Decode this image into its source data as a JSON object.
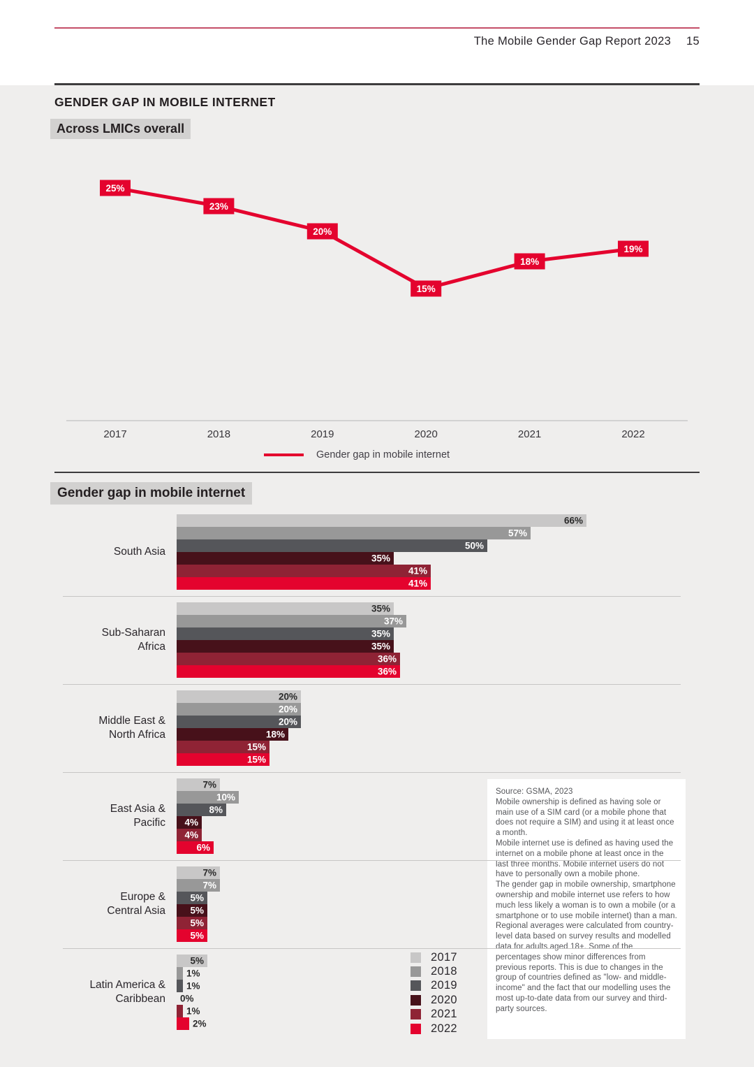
{
  "header": {
    "title": "The Mobile Gender Gap Report 2023",
    "page_number": "15"
  },
  "section": {
    "title": "GENDER GAP IN MOBILE INTERNET",
    "subtitle": "Across LMICs overall",
    "bar_title": "Gender gap in mobile internet"
  },
  "colors": {
    "accent_red": "#e4032e",
    "top_rule_red": "#c44e68",
    "panel_bg": "#efeeed",
    "chip_bg": "#d2d1d0",
    "year_colors": [
      "#c8c7c7",
      "#989898",
      "#55565a",
      "#47111a",
      "#8f2335",
      "#e4032e"
    ]
  },
  "chart_data": [
    {
      "type": "line",
      "title": "Across LMICs overall",
      "x": [
        "2017",
        "2018",
        "2019",
        "2020",
        "2021",
        "2022"
      ],
      "values": [
        25,
        23,
        20,
        15,
        18,
        19
      ],
      "point_labels": [
        "25%",
        "23%",
        "20%",
        "15%",
        "18%",
        "19%"
      ],
      "unit": "%",
      "series_label": "Gender gap in mobile internet",
      "line_color": "#e4032e",
      "label_box_color": "#e4032e",
      "label_text_color": "#ffffff",
      "grid": "off",
      "legend_position": "bottom"
    },
    {
      "type": "bar",
      "orientation": "horizontal",
      "title": "Gender gap in mobile internet",
      "unit": "%",
      "xlim": [
        0,
        70
      ],
      "series_years": [
        "2017",
        "2018",
        "2019",
        "2020",
        "2021",
        "2022"
      ],
      "series_colors": [
        "#c8c7c7",
        "#989898",
        "#55565a",
        "#47111a",
        "#8f2335",
        "#e4032e"
      ],
      "regions": [
        {
          "name": "South Asia",
          "label_lines": [
            "South Asia"
          ],
          "values": [
            66,
            57,
            50,
            35,
            41,
            41
          ]
        },
        {
          "name": "Sub-Saharan Africa",
          "label_lines": [
            "Sub-Saharan",
            "Africa"
          ],
          "values": [
            35,
            37,
            35,
            35,
            36,
            36
          ]
        },
        {
          "name": "Middle East & North Africa",
          "label_lines": [
            "Middle East &",
            "North Africa"
          ],
          "values": [
            20,
            20,
            20,
            18,
            15,
            15
          ]
        },
        {
          "name": "East Asia & Pacific",
          "label_lines": [
            "East Asia &",
            "Pacific"
          ],
          "values": [
            7,
            10,
            8,
            4,
            4,
            6
          ]
        },
        {
          "name": "Europe & Central Asia",
          "label_lines": [
            "Europe &",
            "Central Asia"
          ],
          "values": [
            7,
            7,
            5,
            5,
            5,
            5
          ]
        },
        {
          "name": "Latin America & Caribbean",
          "label_lines": [
            "Latin America &",
            "Caribbean"
          ],
          "values": [
            5,
            1,
            1,
            0,
            1,
            2
          ]
        }
      ],
      "legend_position": "bottom-right"
    }
  ],
  "year_legend": [
    "2017",
    "2018",
    "2019",
    "2020",
    "2021",
    "2022"
  ],
  "source_box": {
    "paragraphs": [
      "Source: GSMA, 2023",
      "Mobile ownership is defined as having sole or main use of a SIM card (or a mobile phone that does not require a SIM) and using it at least once a month.",
      "Mobile internet use is defined as having used the internet on a mobile phone at least once in the last three months. Mobile internet users do not have to personally own a mobile phone.",
      "The gender gap in mobile ownership, smartphone ownership and mobile internet use refers to how much less likely a woman is to own a mobile (or a smartphone or to use mobile internet) than a man.",
      "Regional averages were calculated from country-level data based on survey results and modelled data for adults aged 18+. Some of the percentages show minor differences from previous reports. This is due to changes in the group of countries defined as \"low- and middle-income\" and the fact that our modelling uses the most up-to-date data from our survey and third-party sources."
    ]
  }
}
